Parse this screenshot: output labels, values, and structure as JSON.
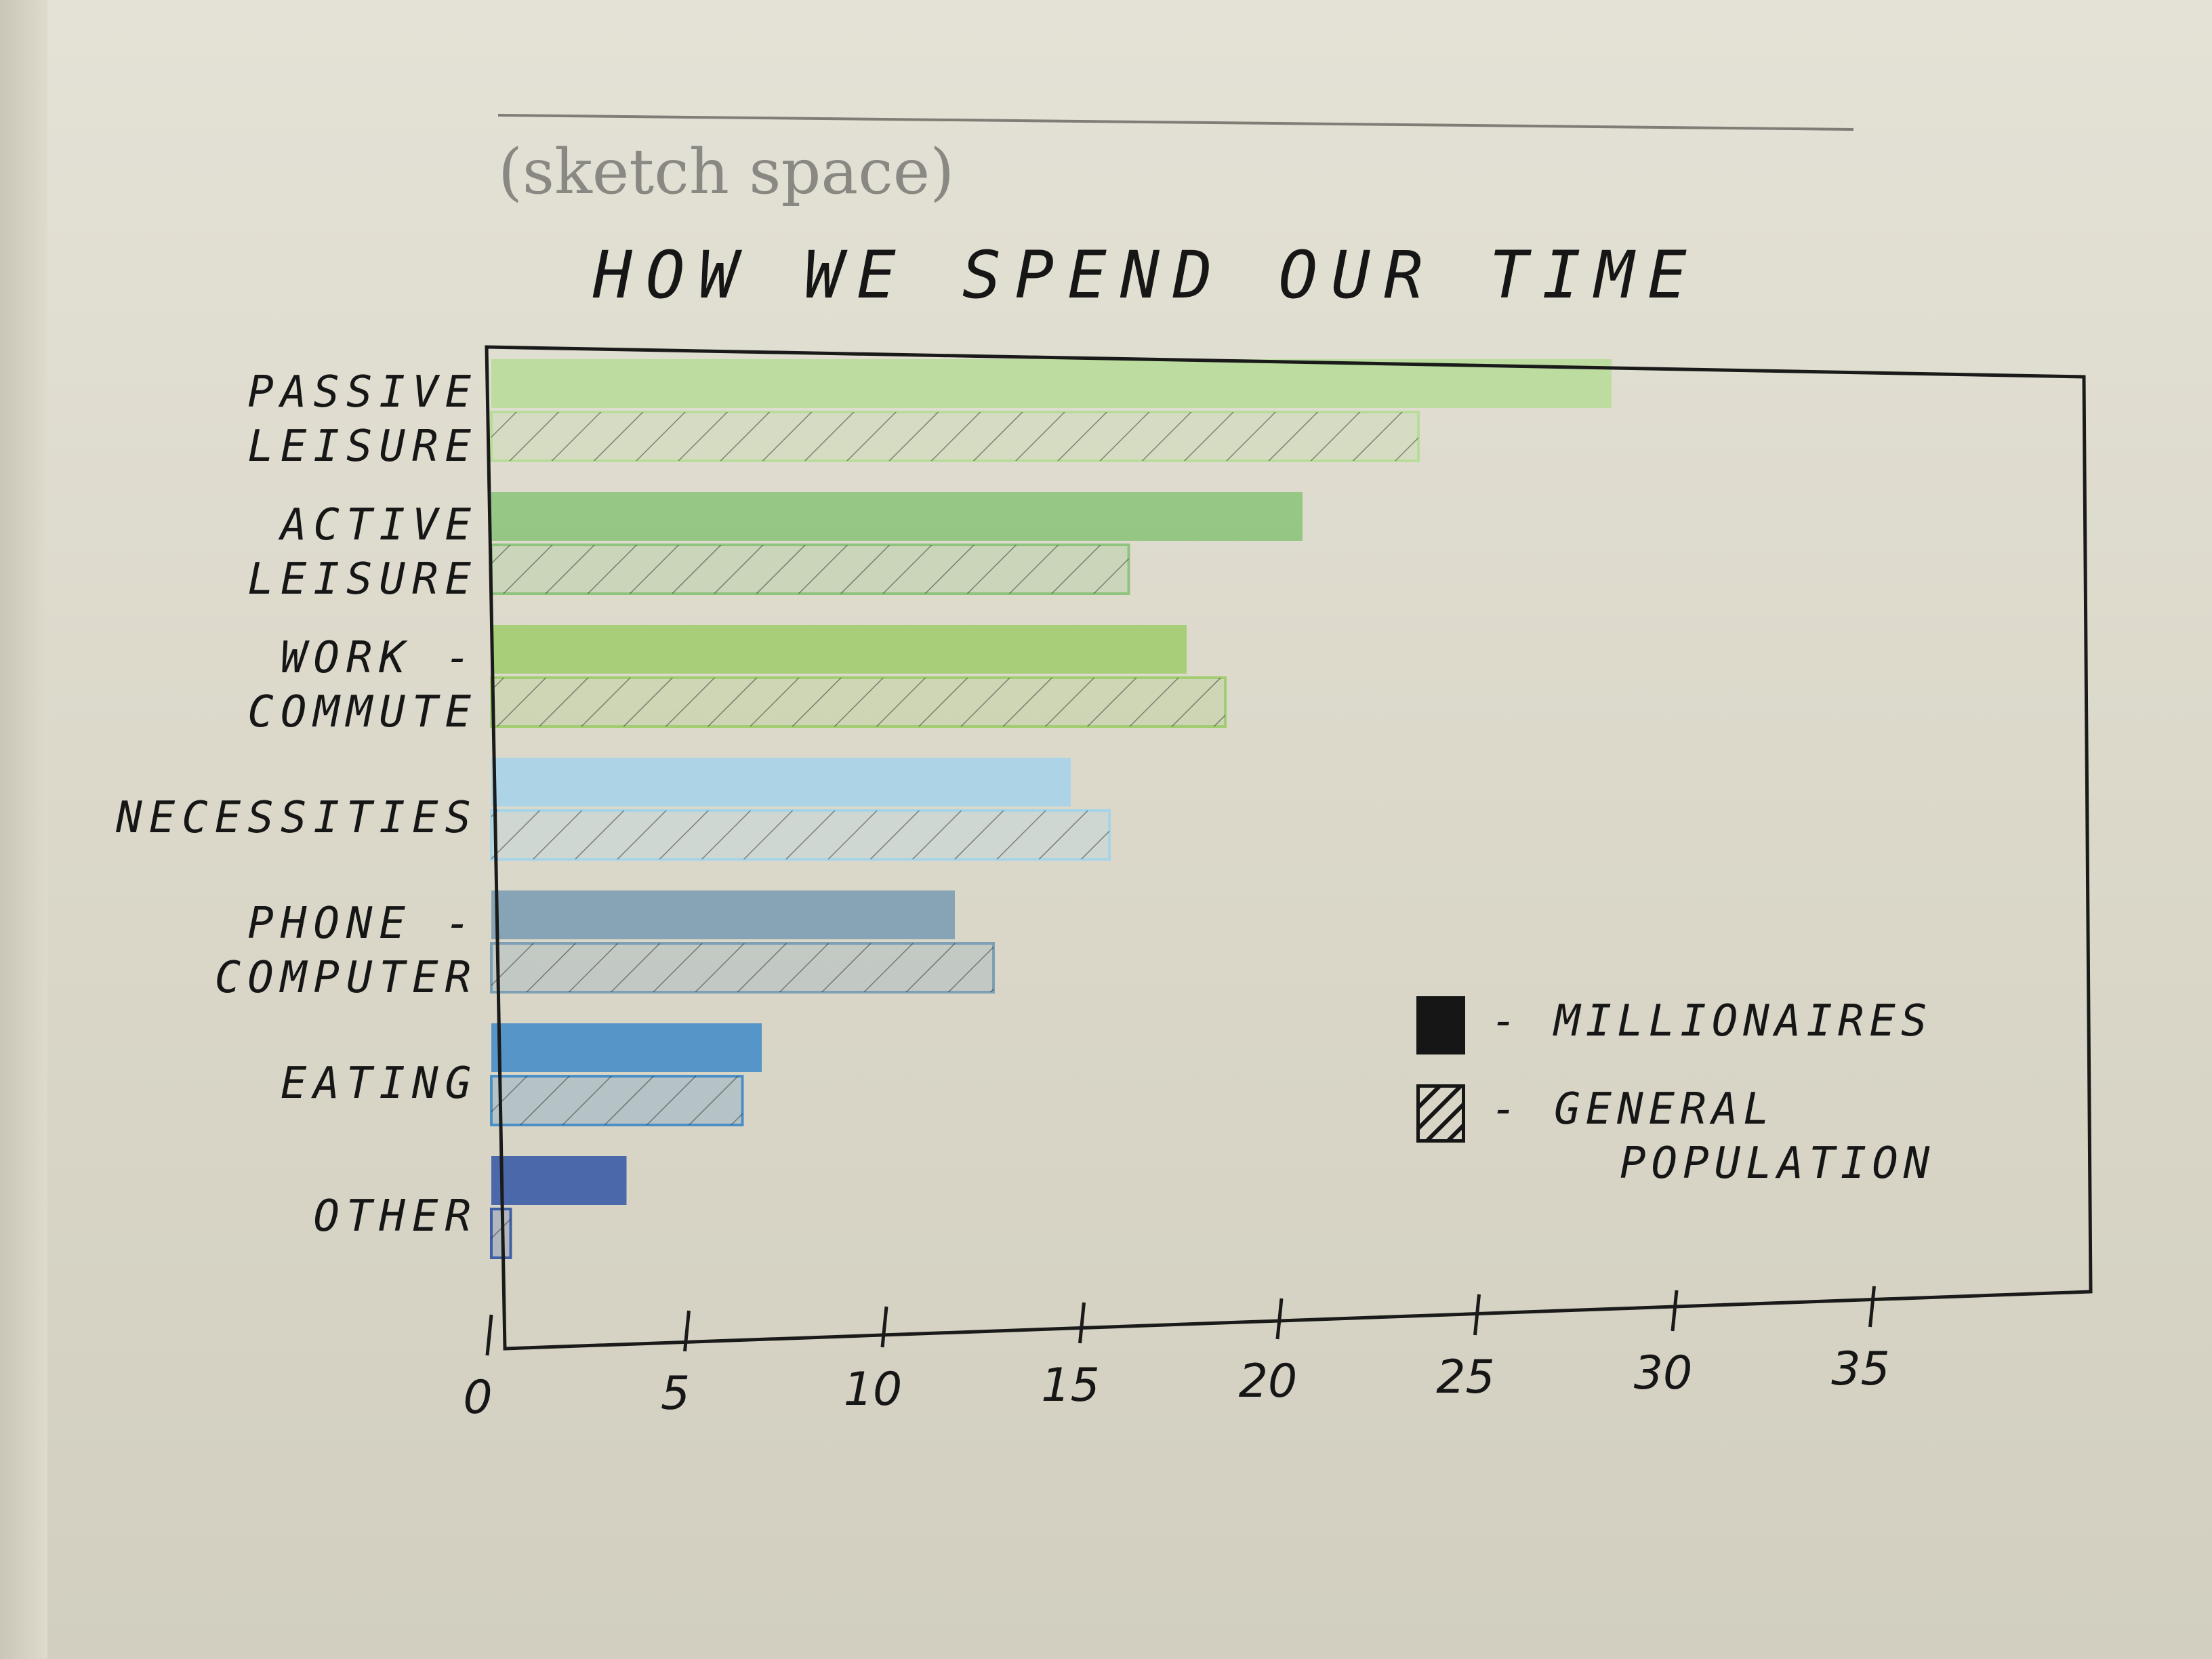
{
  "page": {
    "heading": "(sketch space)"
  },
  "chart_data": {
    "type": "bar",
    "orientation": "horizontal",
    "title": "HOW WE SPEND OUR TIME",
    "categories": [
      [
        "PASSIVE",
        "LEISURE"
      ],
      [
        "ACTIVE",
        "LEISURE"
      ],
      [
        "WORK -",
        "COMMUTE"
      ],
      [
        "NECESSITIES"
      ],
      [
        "PHONE -",
        "COMPUTER"
      ],
      [
        "EATING"
      ],
      [
        "OTHER"
      ]
    ],
    "series": [
      {
        "name": "MILLIONAIRES",
        "pattern": "solid",
        "values": [
          29,
          21,
          18,
          15,
          12,
          7,
          3.5
        ]
      },
      {
        "name": "GENERAL POPULATION",
        "pattern": "hatched",
        "values": [
          24,
          16.5,
          19,
          16,
          13,
          6.5,
          0.5
        ]
      }
    ],
    "bar_colors": [
      "#b8dc9a",
      "#8fc47e",
      "#a3cd72",
      "#a8d4e8",
      "#7f9fb4",
      "#4b8fc7",
      "#3f5ea8"
    ],
    "xlim": [
      0,
      40
    ],
    "x_ticks": [
      "0",
      "5",
      "10",
      "15",
      "20",
      "25",
      "30",
      "35"
    ],
    "x_tick_values": [
      0,
      5,
      10,
      15,
      20,
      25,
      30,
      35
    ],
    "grid": false,
    "legend": {
      "position": "bottom-right",
      "items": [
        {
          "label": "- MILLIONAIRES",
          "pattern": "solid"
        },
        {
          "label": "- GENERAL",
          "label2": "POPULATION",
          "pattern": "hatched"
        }
      ]
    }
  }
}
